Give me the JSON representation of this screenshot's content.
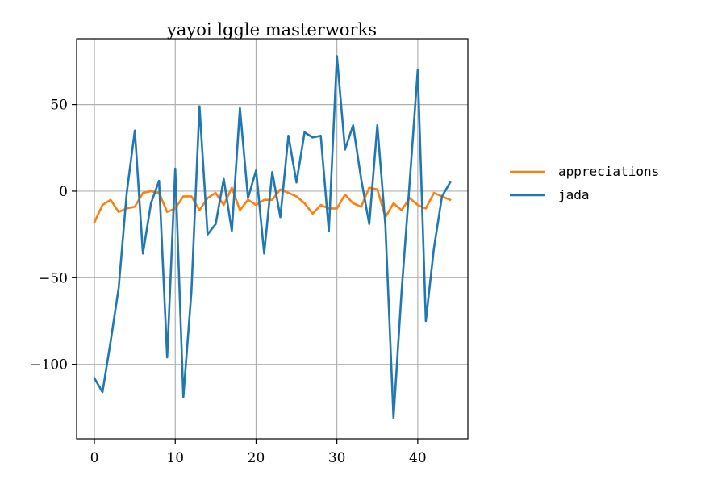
{
  "chart_data": {
    "type": "line",
    "title": "yayoi lggle masterworks",
    "xlabel": "",
    "ylabel": "",
    "xlim": [
      -2.2,
      46.2
    ],
    "ylim": [
      -143,
      88
    ],
    "xticks": [
      0,
      10,
      20,
      30,
      40
    ],
    "yticks": [
      -100,
      -50,
      0,
      50
    ],
    "ytick_labels": [
      "−100",
      "−50",
      "0",
      "50"
    ],
    "grid": true,
    "legend_position": "outside-right",
    "x": [
      0,
      1,
      2,
      3,
      4,
      5,
      6,
      7,
      8,
      9,
      10,
      11,
      12,
      13,
      14,
      15,
      16,
      17,
      18,
      19,
      20,
      21,
      22,
      23,
      24,
      25,
      26,
      27,
      28,
      29,
      30,
      31,
      32,
      33,
      34,
      35,
      36,
      37,
      38,
      39,
      40,
      41,
      42,
      43,
      44
    ],
    "series": [
      {
        "name": "appreciations",
        "color": "#ff7f0e",
        "values": [
          -18,
          -8,
          -5,
          -12,
          -10,
          -9,
          -1,
          0,
          -1,
          -12,
          -10,
          -3,
          -3,
          -11,
          -4,
          -1,
          -8,
          2,
          -11,
          -5,
          -8,
          -5,
          -5,
          1,
          -1,
          -3,
          -7,
          -13,
          -8,
          -10,
          -10,
          -2,
          -7,
          -9,
          2,
          1,
          -15,
          -7,
          -11,
          -4,
          -8,
          -10,
          -1,
          -3,
          -5
        ]
      },
      {
        "name": "jada",
        "color": "#1f77b4",
        "values": [
          -108,
          -116,
          -87,
          -56,
          -1,
          35,
          -36,
          -7,
          6,
          -96,
          13,
          -119,
          -58,
          49,
          -25,
          -19,
          7,
          -23,
          48,
          -4,
          12,
          -36,
          11,
          -15,
          32,
          5,
          34,
          31,
          32,
          -23,
          78,
          24,
          38,
          7,
          -19,
          38,
          -20,
          -131,
          -58,
          5,
          70,
          -75,
          -33,
          -3,
          5
        ]
      }
    ]
  }
}
